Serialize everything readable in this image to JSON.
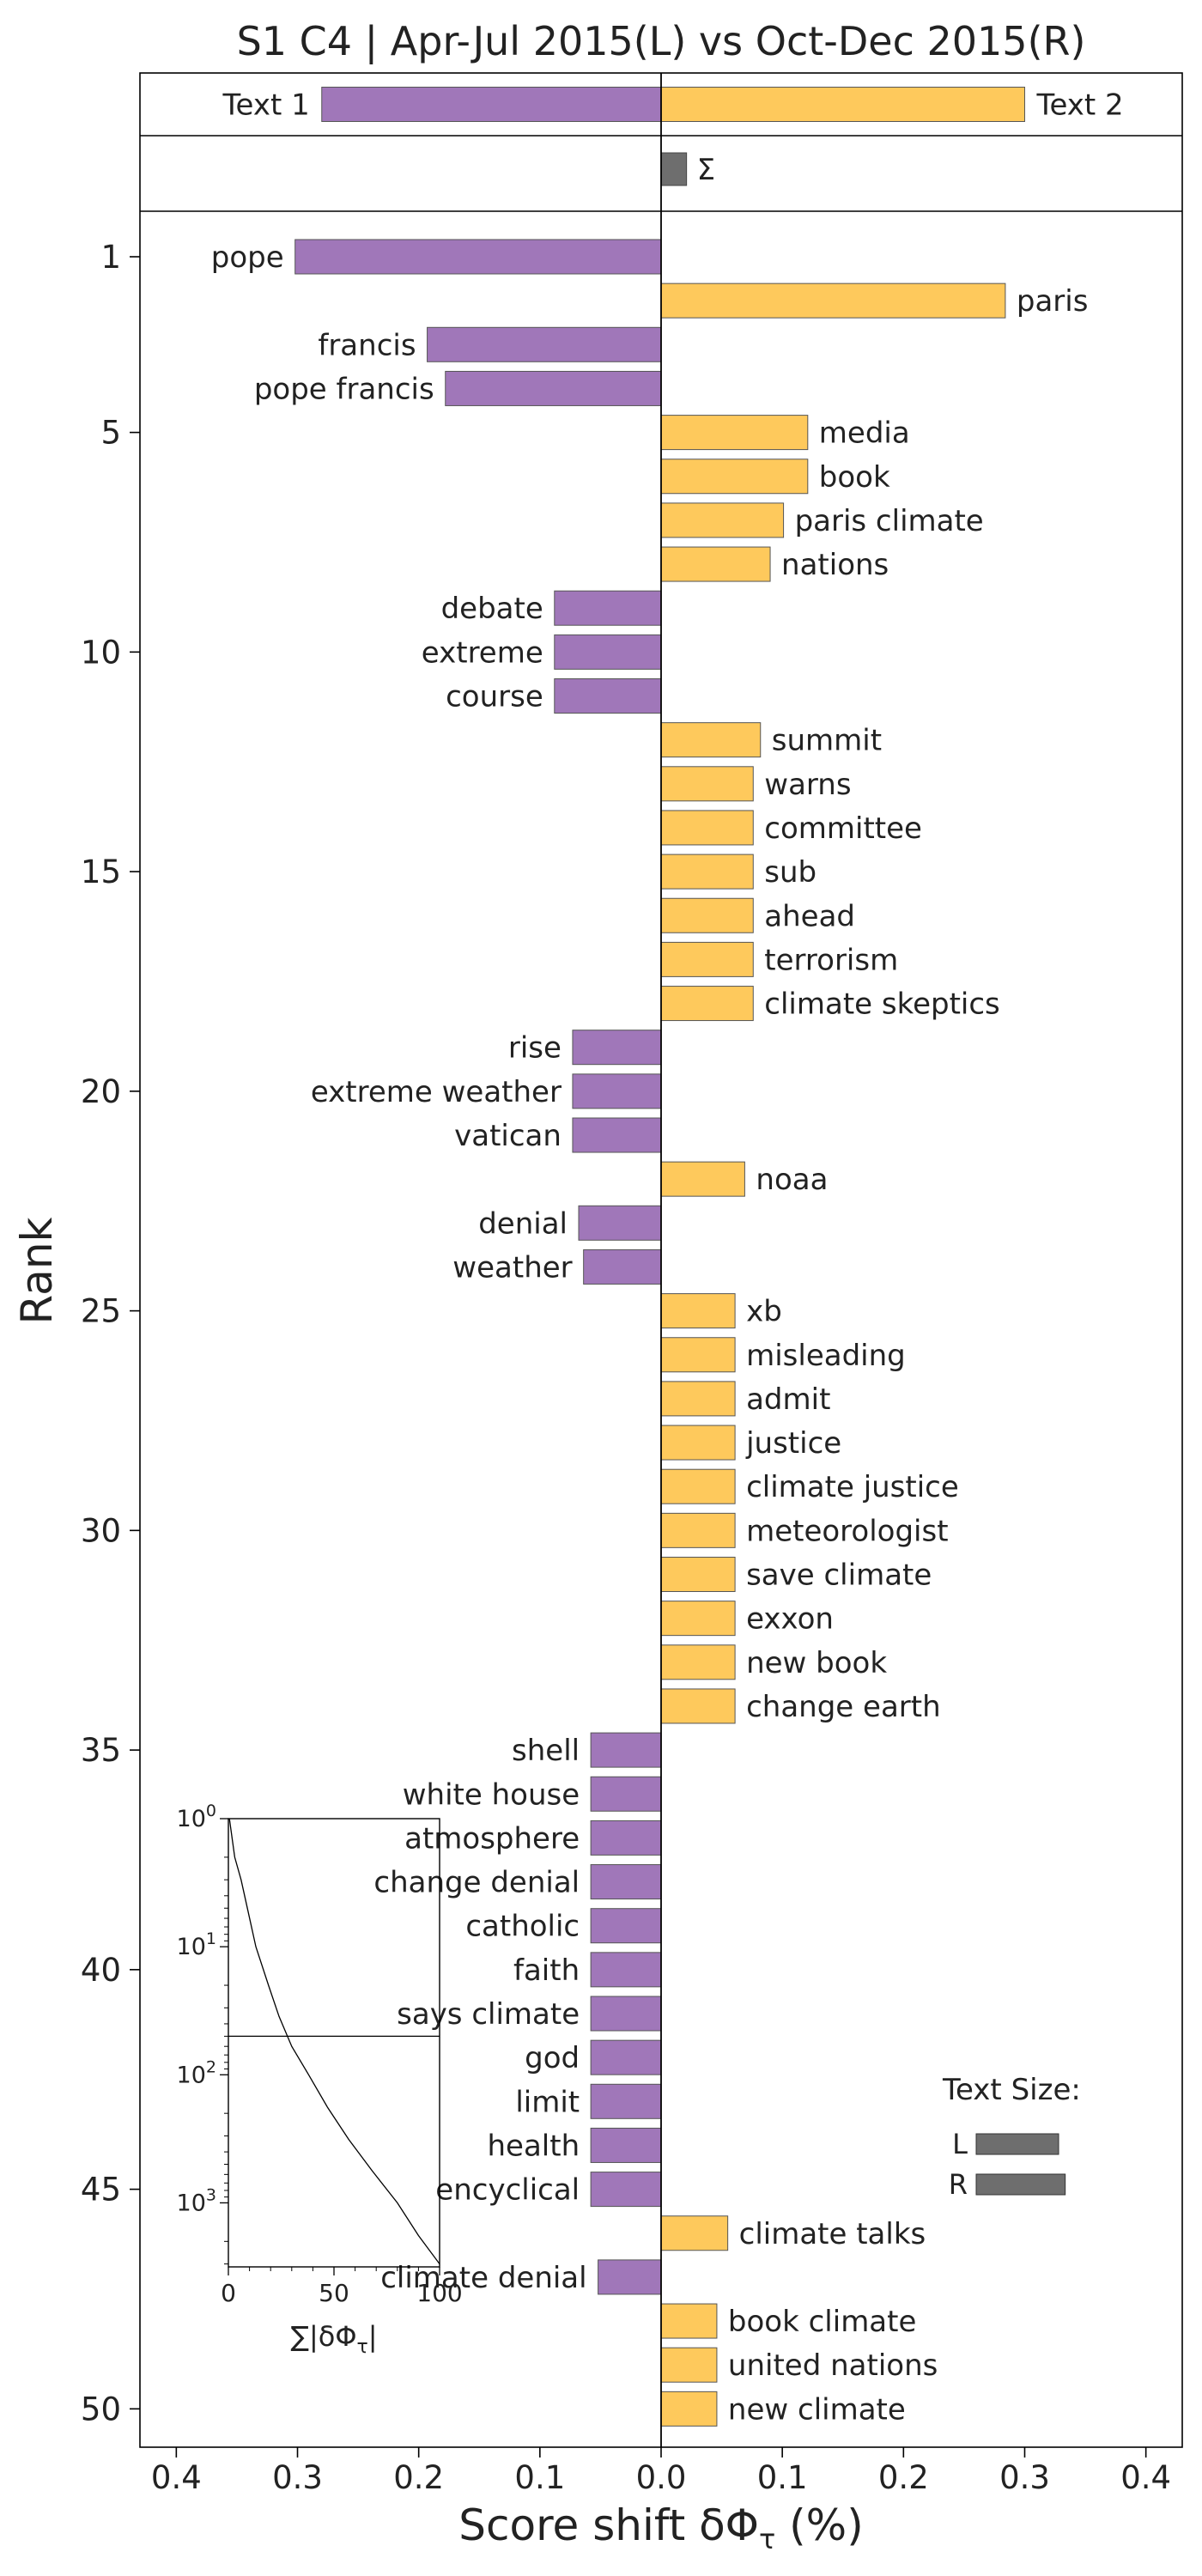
{
  "chart_data": {
    "type": "bar",
    "title": "S1 C4 | Apr-Jul 2015(L) vs Oct-Dec 2015(R)",
    "xlabel": "Score shift δΦ",
    "xlabel_sub": "τ",
    "xlabel_unit": " (%)",
    "ylabel": "Rank",
    "xlim": [
      -0.43,
      0.43
    ],
    "x_ticks": [
      -0.4,
      -0.3,
      -0.2,
      -0.1,
      0.0,
      0.1,
      0.2,
      0.3,
      0.4
    ],
    "x_tick_labels": [
      "0.4",
      "0.3",
      "0.2",
      "0.1",
      "0.0",
      "0.1",
      "0.2",
      "0.3",
      "0.4"
    ],
    "y_ticks": [
      1,
      5,
      10,
      15,
      20,
      25,
      30,
      35,
      40,
      45,
      50
    ],
    "colors": {
      "left": "#a077b9",
      "right": "#fec95c",
      "sum": "#6e6e6e",
      "edge": "#555555"
    },
    "summary": {
      "text1_label": "Text 1",
      "text1_value": -0.28,
      "text2_label": "Text 2",
      "text2_value": 0.3,
      "sum_label": "Σ",
      "sum_value": 0.021
    },
    "bars": [
      {
        "rank": 1,
        "label": "pope",
        "value": -0.302
      },
      {
        "rank": 2,
        "label": "paris",
        "value": 0.284
      },
      {
        "rank": 3,
        "label": "francis",
        "value": -0.193
      },
      {
        "rank": 4,
        "label": "pope francis",
        "value": -0.178
      },
      {
        "rank": 5,
        "label": "media",
        "value": 0.121
      },
      {
        "rank": 6,
        "label": "book",
        "value": 0.121
      },
      {
        "rank": 7,
        "label": "paris climate",
        "value": 0.101
      },
      {
        "rank": 8,
        "label": "nations",
        "value": 0.09
      },
      {
        "rank": 9,
        "label": "debate",
        "value": -0.088
      },
      {
        "rank": 10,
        "label": "extreme",
        "value": -0.088
      },
      {
        "rank": 11,
        "label": "course",
        "value": -0.088
      },
      {
        "rank": 12,
        "label": "summit",
        "value": 0.082
      },
      {
        "rank": 13,
        "label": "warns",
        "value": 0.076
      },
      {
        "rank": 14,
        "label": "committee",
        "value": 0.076
      },
      {
        "rank": 15,
        "label": "sub",
        "value": 0.076
      },
      {
        "rank": 16,
        "label": "ahead",
        "value": 0.076
      },
      {
        "rank": 17,
        "label": "terrorism",
        "value": 0.076
      },
      {
        "rank": 18,
        "label": "climate skeptics",
        "value": 0.076
      },
      {
        "rank": 19,
        "label": "rise",
        "value": -0.073
      },
      {
        "rank": 20,
        "label": "extreme weather",
        "value": -0.073
      },
      {
        "rank": 21,
        "label": "vatican",
        "value": -0.073
      },
      {
        "rank": 22,
        "label": "noaa",
        "value": 0.069
      },
      {
        "rank": 23,
        "label": "denial",
        "value": -0.068
      },
      {
        "rank": 24,
        "label": "weather",
        "value": -0.064
      },
      {
        "rank": 25,
        "label": "xb",
        "value": 0.061
      },
      {
        "rank": 26,
        "label": "misleading",
        "value": 0.061
      },
      {
        "rank": 27,
        "label": "admit",
        "value": 0.061
      },
      {
        "rank": 28,
        "label": "justice",
        "value": 0.061
      },
      {
        "rank": 29,
        "label": "climate justice",
        "value": 0.061
      },
      {
        "rank": 30,
        "label": "meteorologist",
        "value": 0.061
      },
      {
        "rank": 31,
        "label": "save climate",
        "value": 0.061
      },
      {
        "rank": 32,
        "label": "exxon",
        "value": 0.061
      },
      {
        "rank": 33,
        "label": "new book",
        "value": 0.061
      },
      {
        "rank": 34,
        "label": "change earth",
        "value": 0.061
      },
      {
        "rank": 35,
        "label": "shell",
        "value": -0.058
      },
      {
        "rank": 36,
        "label": "white house",
        "value": -0.058
      },
      {
        "rank": 37,
        "label": "atmosphere",
        "value": -0.058
      },
      {
        "rank": 38,
        "label": "change denial",
        "value": -0.058
      },
      {
        "rank": 39,
        "label": "catholic",
        "value": -0.058
      },
      {
        "rank": 40,
        "label": "faith",
        "value": -0.058
      },
      {
        "rank": 41,
        "label": "says climate",
        "value": -0.058
      },
      {
        "rank": 42,
        "label": "god",
        "value": -0.058
      },
      {
        "rank": 43,
        "label": "limit",
        "value": -0.058
      },
      {
        "rank": 44,
        "label": "health",
        "value": -0.058
      },
      {
        "rank": 45,
        "label": "encyclical",
        "value": -0.058
      },
      {
        "rank": 46,
        "label": "climate talks",
        "value": 0.055
      },
      {
        "rank": 47,
        "label": "climate denial",
        "value": -0.052
      },
      {
        "rank": 48,
        "label": "book climate",
        "value": 0.046
      },
      {
        "rank": 49,
        "label": "united nations",
        "value": 0.046
      },
      {
        "rank": 50,
        "label": "new climate",
        "value": 0.046
      }
    ],
    "inset": {
      "type": "line",
      "xlim": [
        0,
        100
      ],
      "x_ticks": [
        0,
        50,
        100
      ],
      "y_scale": "log",
      "y_ticks_exponents": [
        0,
        1,
        2,
        3
      ],
      "y_tick_base": "10",
      "xlabel": "∑|δΦ",
      "xlabel_sub": "τ",
      "xlabel_end": "|",
      "reference_rank": 50,
      "reference_cum_percent": 100,
      "curve": [
        [
          0.5,
          1
        ],
        [
          3,
          2
        ],
        [
          6,
          3
        ],
        [
          9,
          5
        ],
        [
          13,
          10
        ],
        [
          19,
          20
        ],
        [
          24,
          35
        ],
        [
          30,
          60
        ],
        [
          38,
          100
        ],
        [
          47,
          180
        ],
        [
          57,
          320
        ],
        [
          68,
          560
        ],
        [
          80,
          1000
        ],
        [
          90,
          1800
        ],
        [
          100,
          3000
        ]
      ]
    },
    "legend": {
      "title": "Text Size:",
      "items": [
        {
          "label": "L",
          "size": 1.0
        },
        {
          "label": "R",
          "size": 1.08
        }
      ]
    }
  }
}
